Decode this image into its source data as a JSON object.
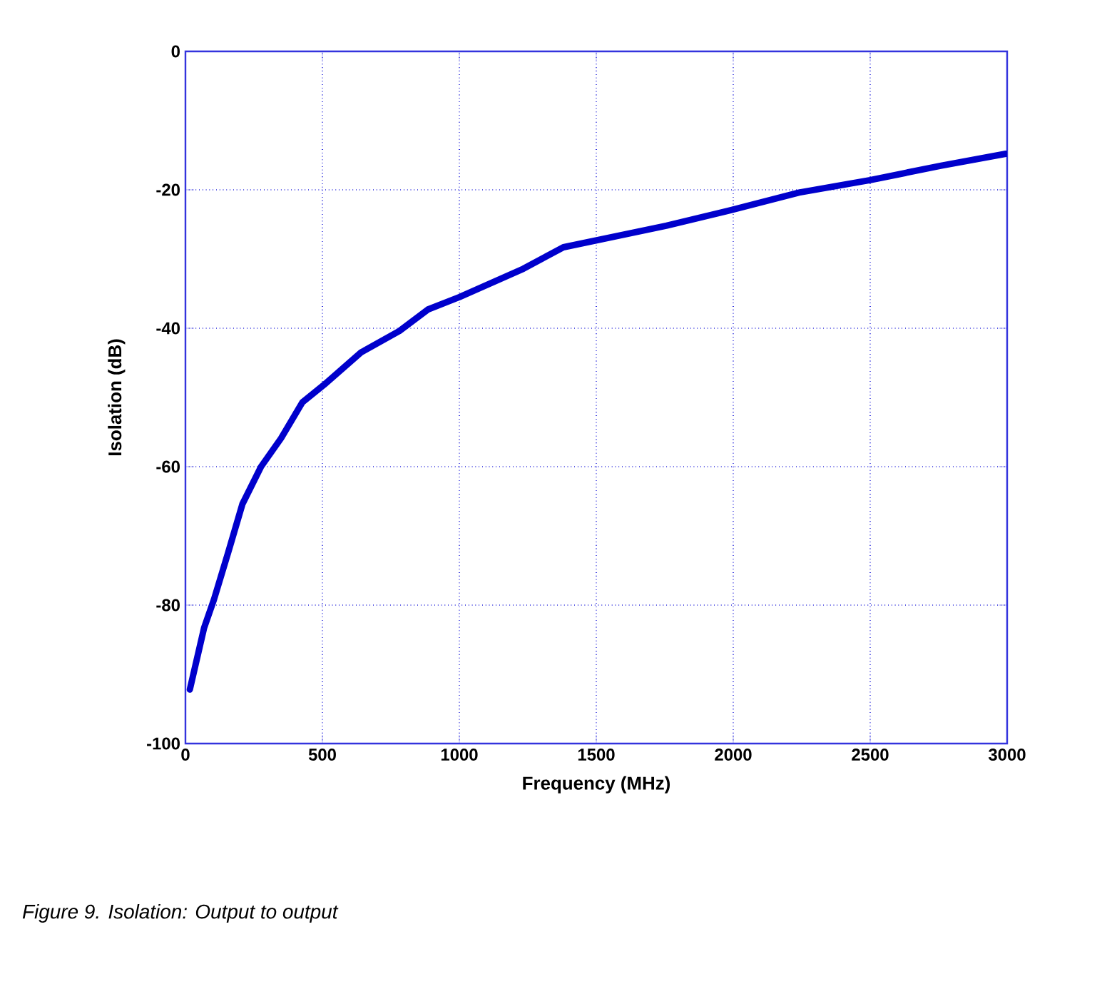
{
  "chart_data": {
    "type": "line",
    "xlabel": "Frequency (MHz)",
    "ylabel": "Isolation (dB)",
    "annotations": [
      "Figure 9. Isolation: Output to output"
    ],
    "x": [
      16,
      68,
      104,
      156,
      208,
      276,
      349,
      427,
      505,
      641,
      781,
      885,
      1000,
      1234,
      1380,
      1755,
      1995,
      2240,
      2500,
      2760,
      2995
    ],
    "series": [
      {
        "color": "#0000cc",
        "values": [
          -92.2,
          -83.3,
          -79.2,
          -72.4,
          -65.4,
          -60,
          -55.9,
          -50.7,
          -48.2,
          -43.5,
          -40.4,
          -37.3,
          -35.5,
          -31.4,
          -28.3,
          -25.2,
          -22.9,
          -20.4,
          -18.6,
          -16.5,
          -14.8
        ]
      }
    ],
    "xlim": [
      0,
      3000
    ],
    "ylim": [
      -100,
      0
    ],
    "xticks": [
      0,
      500,
      1000,
      1500,
      2000,
      2500,
      3000
    ],
    "yticks": [
      -100,
      -80,
      -60,
      -40,
      -20,
      0
    ],
    "grid": true,
    "marker": "none",
    "line_style": "solid"
  }
}
